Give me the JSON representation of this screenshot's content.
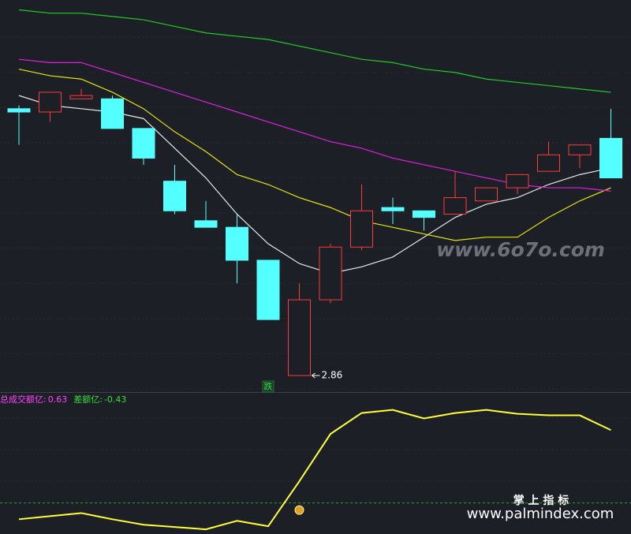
{
  "chart_data": [
    {
      "type": "candlestick",
      "ylim": [
        2.81,
        4.0
      ],
      "up_color": "#ff3b3b",
      "down_color": "#54ffff",
      "open": [
        3.67,
        3.66,
        3.7,
        3.7,
        3.61,
        3.45,
        3.33,
        3.31,
        3.21,
        2.86,
        3.09,
        3.25,
        3.37,
        3.36,
        3.35,
        3.39,
        3.43,
        3.48,
        3.53,
        3.58
      ],
      "high": [
        3.68,
        3.72,
        3.73,
        3.71,
        3.61,
        3.5,
        3.39,
        3.35,
        3.21,
        3.14,
        3.26,
        3.44,
        3.4,
        3.36,
        3.48,
        3.43,
        3.47,
        3.57,
        3.56,
        3.67
      ],
      "low": [
        3.56,
        3.63,
        3.7,
        3.61,
        3.5,
        3.35,
        3.31,
        3.14,
        3.03,
        2.86,
        3.08,
        3.24,
        3.32,
        3.3,
        3.35,
        3.39,
        3.41,
        3.48,
        3.49,
        3.46
      ],
      "close": [
        3.66,
        3.72,
        3.71,
        3.61,
        3.52,
        3.36,
        3.31,
        3.21,
        3.03,
        3.09,
        3.25,
        3.36,
        3.36,
        3.34,
        3.4,
        3.43,
        3.47,
        3.53,
        3.56,
        3.46
      ],
      "lines": [
        {
          "color": "#e8e8e8",
          "values": [
            3.71,
            3.68,
            3.67,
            3.66,
            3.64,
            3.55,
            3.46,
            3.35,
            3.26,
            3.2,
            3.17,
            3.19,
            3.22,
            3.28,
            3.34,
            3.38,
            3.4,
            3.44,
            3.47,
            3.49
          ]
        },
        {
          "color": "#e6e600",
          "values": [
            3.79,
            3.77,
            3.76,
            3.72,
            3.67,
            3.6,
            3.54,
            3.47,
            3.44,
            3.4,
            3.37,
            3.33,
            3.31,
            3.29,
            3.27,
            3.28,
            3.28,
            3.34,
            3.39,
            3.43
          ]
        },
        {
          "color": "#e020e0",
          "values": [
            3.82,
            3.81,
            3.81,
            3.78,
            3.75,
            3.72,
            3.69,
            3.66,
            3.63,
            3.6,
            3.57,
            3.55,
            3.52,
            3.5,
            3.48,
            3.46,
            3.44,
            3.43,
            3.43,
            3.42
          ]
        },
        {
          "color": "#22cc22",
          "values": [
            3.97,
            3.96,
            3.96,
            3.95,
            3.94,
            3.92,
            3.9,
            3.89,
            3.88,
            3.86,
            3.84,
            3.82,
            3.81,
            3.79,
            3.78,
            3.76,
            3.75,
            3.74,
            3.73,
            3.72
          ]
        }
      ],
      "low_marker": {
        "index": 9,
        "value": 2.86
      },
      "signal": {
        "index": 8,
        "label": "跌"
      },
      "watermark": "www.6o7o.com"
    },
    {
      "type": "line",
      "ylim": [
        -0.4,
        1.4
      ],
      "reference_line": 0,
      "color": "#ffff33",
      "values": [
        -0.21,
        -0.17,
        -0.13,
        -0.21,
        -0.28,
        -0.31,
        -0.34,
        -0.23,
        -0.3,
        0.28,
        0.89,
        1.16,
        1.2,
        1.09,
        1.16,
        1.2,
        1.15,
        1.13,
        1.13,
        0.94
      ],
      "legend": [
        {
          "name": "总成交额亿:",
          "value": 0.63,
          "color": "#ff44ff"
        },
        {
          "name": "差额亿:",
          "value": -0.43,
          "color": "#33dd33"
        }
      ],
      "watermarks": [
        "掌 上 指 标",
        "www.palmindex.com"
      ]
    }
  ]
}
